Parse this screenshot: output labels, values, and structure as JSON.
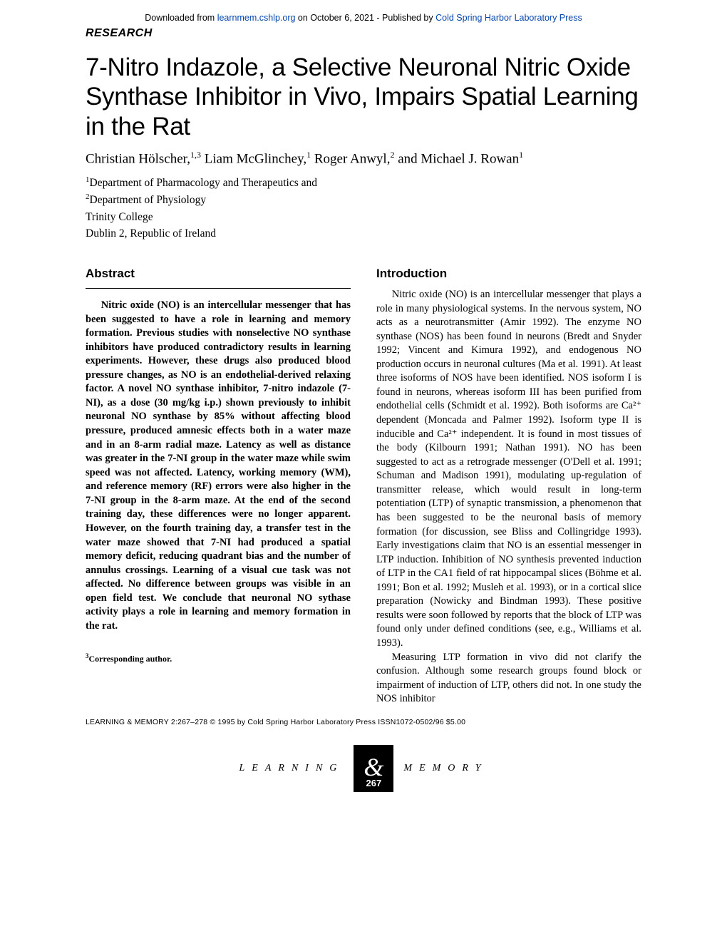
{
  "header": {
    "download_prefix": "Downloaded from ",
    "download_link": "learnmem.cshlp.org",
    "download_mid": " on October 6, 2021 - Published by ",
    "publisher_link": "Cold Spring Harbor Laboratory Press",
    "section_label": "RESEARCH"
  },
  "title": "7-Nitro Indazole, a Selective Neuronal Nitric Oxide Synthase Inhibitor in Vivo, Impairs Spatial Learning in the Rat",
  "authors_html": "Christian Hölscher,<sup>1,3</sup> Liam McGlinchey,<sup>1</sup> Roger Anwyl,<sup>2</sup> and Michael J. Rowan<sup>1</sup>",
  "affiliations": {
    "line1_sup": "1",
    "line1": "Department of Pharmacology and Therapeutics and",
    "line2_sup": "2",
    "line2": "Department of Physiology",
    "line3": "Trinity College",
    "line4": "Dublin 2, Republic of Ireland"
  },
  "abstract": {
    "heading": "Abstract",
    "text": "Nitric oxide (NO) is an intercellular messenger that has been suggested to have a role in learning and memory formation. Previous studies with nonselective NO synthase inhibitors have produced contradictory results in learning experiments. However, these drugs also produced blood pressure changes, as NO is an endothelial-derived relaxing factor. A novel NO synthase inhibitor, 7-nitro indazole (7-NI), as a dose (30 mg/kg i.p.) shown previously to inhibit neuronal NO synthase by 85% without affecting blood pressure, produced amnesic effects both in a water maze and in an 8-arm radial maze. Latency as well as distance was greater in the 7-NI group in the water maze while swim speed was not affected. Latency, working memory (WM), and reference memory (RF) errors were also higher in the 7-NI group in the 8-arm maze. At the end of the second training day, these differences were no longer apparent. However, on the fourth training day, a transfer test in the water maze showed that 7-NI had produced a spatial memory deficit, reducing quadrant bias and the number of annulus crossings. Learning of a visual cue task was not affected. No difference between groups was visible in an open field test. We conclude that neuronal NO sythase activity plays a role in learning and memory formation in the rat."
  },
  "introduction": {
    "heading": "Introduction",
    "para1": "Nitric oxide (NO) is an intercellular messenger that plays a role in many physiological systems. In the nervous system, NO acts as a neurotransmitter (Amir 1992). The enzyme NO synthase (NOS) has been found in neurons (Bredt and Snyder 1992; Vincent and Kimura 1992), and endogenous NO production occurs in neuronal cultures (Ma et al. 1991). At least three isoforms of NOS have been identified. NOS isoform I is found in neurons, whereas isoform III has been purified from endothelial cells (Schmidt et al. 1992). Both isoforms are Ca²⁺ dependent (Moncada and Palmer 1992). Isoform type II is inducible and Ca²⁺ independent. It is found in most tissues of the body (Kilbourn 1991; Nathan 1991). NO has been suggested to act as a retrograde messenger (O'Dell et al. 1991; Schuman and Madison 1991), modulating up-regulation of transmitter release, which would result in long-term potentiation (LTP) of synaptic transmission, a phenomenon that has been suggested to be the neuronal basis of memory formation (for discussion, see Bliss and Collingridge 1993). Early investigations claim that NO is an essential messenger in LTP induction. Inhibition of NO synthesis prevented induction of LTP in the CA1 field of rat hippocampal slices (Böhme et al. 1991; Bon et al. 1992; Musleh et al. 1993), or in a cortical slice preparation (Nowicky and Bindman 1993). These positive results were soon followed by reports that the block of LTP was found only under defined conditions (see, e.g., Williams et al. 1993).",
    "para2": "Measuring LTP formation in vivo did not clarify the confusion. Although some research groups found block or impairment of induction of LTP, others did not. In one study the NOS inhibitor"
  },
  "corresponding": {
    "sup": "3",
    "text": "Corresponding author."
  },
  "citation": "LEARNING & MEMORY 2:267–278 © 1995 by Cold Spring Harbor Laboratory Press ISSN1072-0502/96 $5.00",
  "footer": {
    "left": "LEARNING",
    "ampersand": "&",
    "right": "MEMORY",
    "page": "267"
  }
}
